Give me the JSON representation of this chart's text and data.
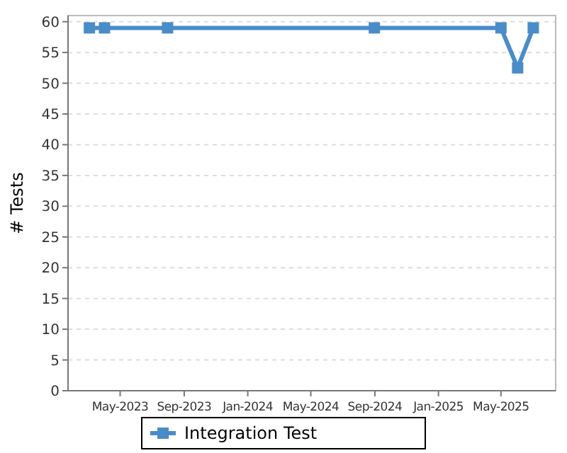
{
  "chart_data": {
    "type": "line",
    "ylabel": "# Tests",
    "x": [
      "2023-03-03",
      "2023-04-01",
      "2023-07-31",
      "2024-08-31",
      "2025-05-01",
      "2025-06-02",
      "2025-07-02"
    ],
    "series": [
      {
        "name": "Integration Test",
        "color": "#4a8cc8",
        "values": [
          59,
          59,
          59,
          59,
          59,
          52.5,
          59
        ]
      }
    ],
    "xlim": [
      "2023-01-21",
      "2025-08-14"
    ],
    "xticks": [
      {
        "value": "2023-05-01",
        "label": "May-2023"
      },
      {
        "value": "2023-09-01",
        "label": "Sep-2023"
      },
      {
        "value": "2024-01-01",
        "label": "Jan-2024"
      },
      {
        "value": "2024-05-01",
        "label": "May-2024"
      },
      {
        "value": "2024-09-01",
        "label": "Sep-2024"
      },
      {
        "value": "2025-01-01",
        "label": "Jan-2025"
      },
      {
        "value": "2025-05-01",
        "label": "May-2025"
      }
    ],
    "ylim": [
      0,
      61
    ],
    "yticks": [
      0,
      5,
      10,
      15,
      20,
      25,
      30,
      35,
      40,
      45,
      50,
      55,
      60
    ],
    "grid": "y",
    "legend": "bottom",
    "marker": "square",
    "line_style": "solid"
  }
}
